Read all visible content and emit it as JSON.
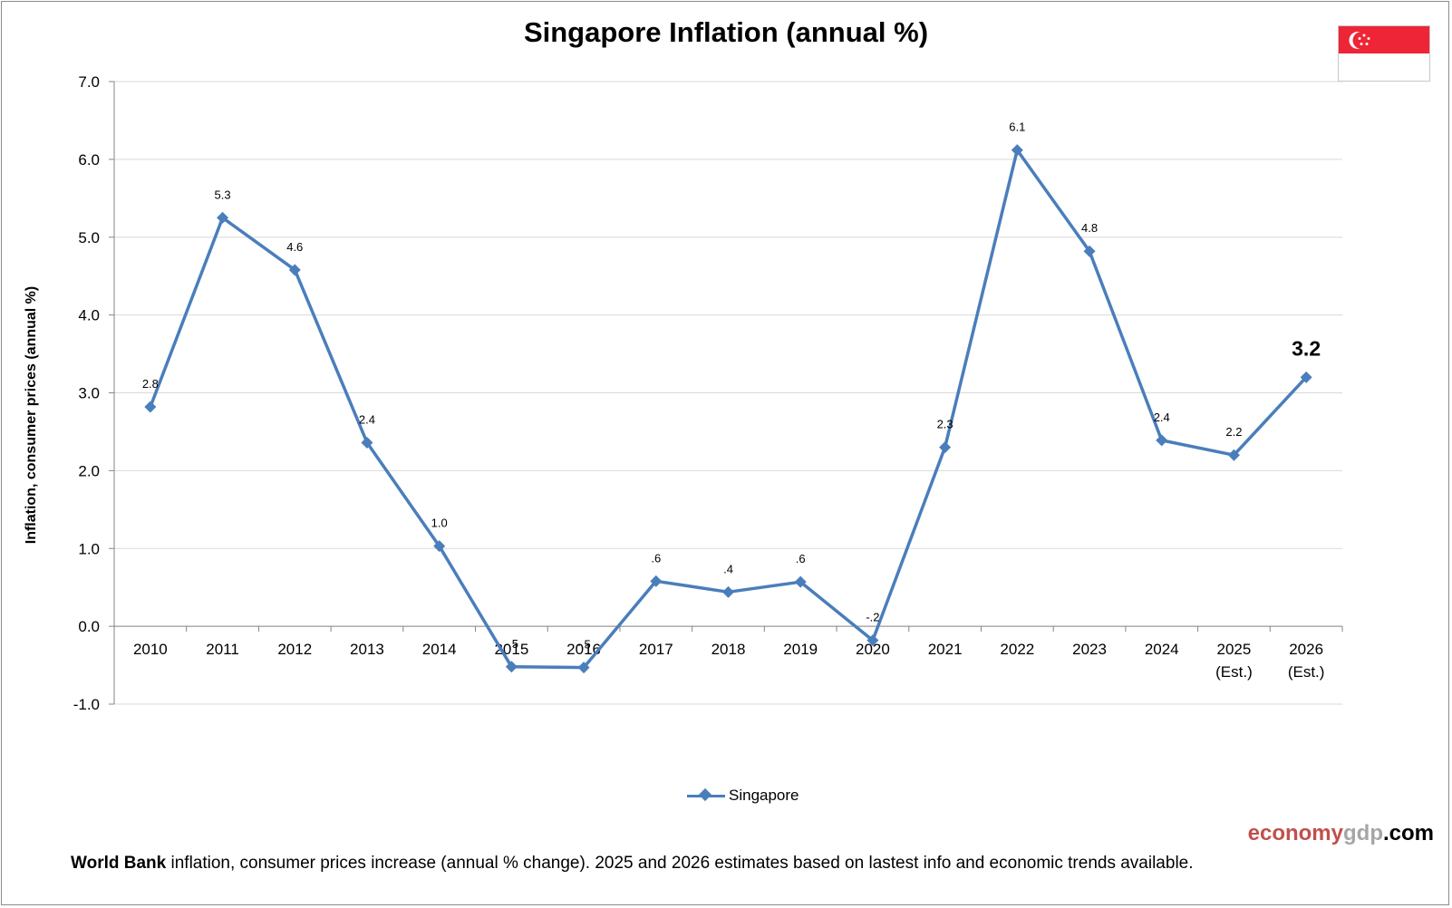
{
  "chart_data": {
    "type": "line",
    "title": "Singapore Inflation (annual %)",
    "ylabel": "Inflation, consumer prices (annual %)",
    "xlabel": "",
    "ylim": [
      -1.0,
      7.0
    ],
    "yticks": [
      "-1.0",
      "0.0",
      "1.0",
      "2.0",
      "3.0",
      "4.0",
      "5.0",
      "6.0",
      "7.0"
    ],
    "categories": [
      [
        "2010"
      ],
      [
        "2011"
      ],
      [
        "2012"
      ],
      [
        "2013"
      ],
      [
        "2014"
      ],
      [
        "2015"
      ],
      [
        "2016"
      ],
      [
        "2017"
      ],
      [
        "2018"
      ],
      [
        "2019"
      ],
      [
        "2020"
      ],
      [
        "2021"
      ],
      [
        "2022"
      ],
      [
        "2023"
      ],
      [
        "2024"
      ],
      [
        "2025",
        "(Est.)"
      ],
      [
        "2026",
        "(Est.)"
      ]
    ],
    "series": [
      {
        "name": "Singapore",
        "values": [
          2.82,
          5.25,
          4.58,
          2.36,
          1.03,
          -0.52,
          -0.53,
          0.58,
          0.44,
          0.57,
          -0.18,
          2.3,
          6.12,
          4.82,
          2.39,
          2.2,
          3.2
        ],
        "labels": [
          "2.8",
          "5.3",
          "4.6",
          "2.4",
          "1.0",
          "-.5",
          "-.5",
          ".6",
          ".4",
          ".6",
          "-.2",
          "2.3",
          "6.1",
          "4.8",
          "2.4",
          "2.2",
          "3.2"
        ],
        "color": "#4a7ebb"
      }
    ],
    "grid": true,
    "legend_position": "bottom"
  },
  "legend": {
    "label": "Singapore"
  },
  "brand": {
    "part1": "economy",
    "part2": "gdp",
    "part3": ".com",
    "color1": "#c0504d",
    "color2": "#a6a6a6",
    "color3": "#000000"
  },
  "footnote": {
    "bold": "World Bank",
    "text": " inflation, consumer prices increase (annual % change).  2025 and 2026 estimates based on lastest info and economic trends available."
  },
  "flag": {
    "icon": "singapore-flag-icon",
    "red": "#ee2536"
  }
}
